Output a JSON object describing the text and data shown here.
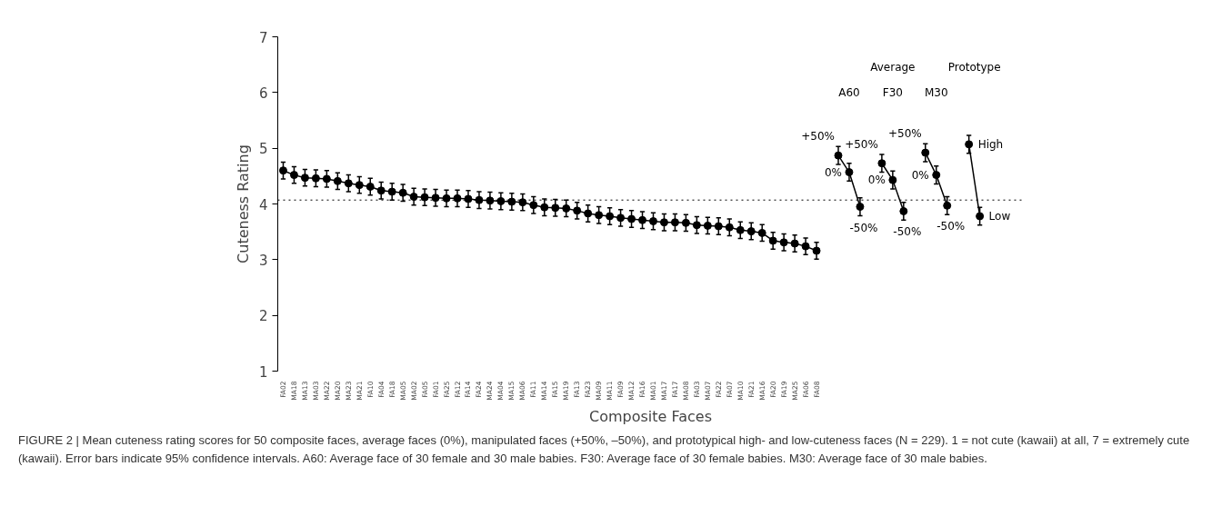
{
  "chart_data": {
    "type": "line",
    "xlabel": "Composite Faces",
    "ylabel": "Cuteness Rating",
    "categories": [
      "FA02",
      "MA18",
      "MA13",
      "MA03",
      "MA22",
      "MA20",
      "MA23",
      "MA21",
      "FA10",
      "FA04",
      "FA18",
      "MA05",
      "MA02",
      "FA05",
      "FA01",
      "FA25",
      "FA12",
      "FA14",
      "FA24",
      "MA24",
      "MA04",
      "MA15",
      "MA06",
      "FA11",
      "MA14",
      "FA15",
      "MA19",
      "FA13",
      "FA23",
      "MA09",
      "MA11",
      "FA09",
      "MA12",
      "FA16",
      "MA01",
      "MA17",
      "FA17",
      "MA08",
      "FA03",
      "MA07",
      "FA22",
      "FA07",
      "MA10",
      "FA21",
      "MA16",
      "FA20",
      "FA19",
      "MA25",
      "FA06",
      "FA08",
      null,
      null,
      null,
      null,
      null,
      null,
      null,
      null,
      null,
      null,
      null,
      null,
      null,
      null,
      null
    ],
    "series": [
      {
        "color": "#000000",
        "values": [
          4.6,
          4.52,
          4.47,
          4.46,
          4.45,
          4.41,
          4.37,
          4.34,
          4.31,
          4.24,
          4.22,
          4.2,
          4.13,
          4.12,
          4.11,
          4.1,
          4.1,
          4.09,
          4.07,
          4.06,
          4.05,
          4.04,
          4.03,
          3.98,
          3.94,
          3.93,
          3.92,
          3.88,
          3.83,
          3.8,
          3.78,
          3.75,
          3.73,
          3.71,
          3.69,
          3.67,
          3.67,
          3.66,
          3.62,
          3.61,
          3.6,
          3.58,
          3.53,
          3.51,
          3.48,
          3.34,
          3.31,
          3.29,
          3.24,
          3.16,
          null,
          null,
          null,
          null,
          null,
          null,
          null,
          null,
          null,
          null,
          null,
          null,
          null,
          null,
          null
        ],
        "errors": [
          0.15,
          0.15,
          0.15,
          0.15,
          0.15,
          0.15,
          0.15,
          0.15,
          0.15,
          0.15,
          0.15,
          0.15,
          0.15,
          0.15,
          0.15,
          0.15,
          0.15,
          0.15,
          0.15,
          0.15,
          0.15,
          0.15,
          0.15,
          0.15,
          0.15,
          0.15,
          0.15,
          0.15,
          0.15,
          0.15,
          0.15,
          0.15,
          0.15,
          0.15,
          0.15,
          0.15,
          0.15,
          0.15,
          0.15,
          0.15,
          0.15,
          0.15,
          0.15,
          0.15,
          0.15,
          0.15,
          0.15,
          0.15,
          0.15,
          0.15,
          null,
          null,
          null,
          null,
          null,
          null,
          null,
          null,
          null,
          null,
          null,
          null,
          null,
          null,
          null
        ]
      },
      {
        "color": "#000000",
        "values": [
          null,
          null,
          null,
          null,
          null,
          null,
          null,
          null,
          null,
          null,
          null,
          null,
          null,
          null,
          null,
          null,
          null,
          null,
          null,
          null,
          null,
          null,
          null,
          null,
          null,
          null,
          null,
          null,
          null,
          null,
          null,
          null,
          null,
          null,
          null,
          null,
          null,
          null,
          null,
          null,
          null,
          null,
          null,
          null,
          null,
          null,
          null,
          null,
          null,
          null,
          null,
          4.87,
          4.57,
          3.95,
          null,
          null,
          null,
          null,
          null,
          null,
          null,
          null,
          null,
          null,
          null
        ],
        "errors": [
          null,
          null,
          null,
          null,
          null,
          null,
          null,
          null,
          null,
          null,
          null,
          null,
          null,
          null,
          null,
          null,
          null,
          null,
          null,
          null,
          null,
          null,
          null,
          null,
          null,
          null,
          null,
          null,
          null,
          null,
          null,
          null,
          null,
          null,
          null,
          null,
          null,
          null,
          null,
          null,
          null,
          null,
          null,
          null,
          null,
          null,
          null,
          null,
          null,
          null,
          null,
          0.16,
          0.16,
          0.16,
          null,
          null,
          null,
          null,
          null,
          null,
          null,
          null,
          null,
          null,
          null
        ]
      },
      {
        "color": "#000000",
        "values": [
          null,
          null,
          null,
          null,
          null,
          null,
          null,
          null,
          null,
          null,
          null,
          null,
          null,
          null,
          null,
          null,
          null,
          null,
          null,
          null,
          null,
          null,
          null,
          null,
          null,
          null,
          null,
          null,
          null,
          null,
          null,
          null,
          null,
          null,
          null,
          null,
          null,
          null,
          null,
          null,
          null,
          null,
          null,
          null,
          null,
          null,
          null,
          null,
          null,
          null,
          null,
          null,
          null,
          null,
          null,
          4.73,
          4.43,
          3.87,
          null,
          null,
          null,
          null,
          null,
          null,
          null
        ],
        "errors": [
          null,
          null,
          null,
          null,
          null,
          null,
          null,
          null,
          null,
          null,
          null,
          null,
          null,
          null,
          null,
          null,
          null,
          null,
          null,
          null,
          null,
          null,
          null,
          null,
          null,
          null,
          null,
          null,
          null,
          null,
          null,
          null,
          null,
          null,
          null,
          null,
          null,
          null,
          null,
          null,
          null,
          null,
          null,
          null,
          null,
          null,
          null,
          null,
          null,
          null,
          null,
          null,
          null,
          null,
          null,
          0.16,
          0.16,
          0.16,
          null,
          null,
          null,
          null,
          null,
          null,
          null
        ]
      },
      {
        "color": "#000000",
        "values": [
          null,
          null,
          null,
          null,
          null,
          null,
          null,
          null,
          null,
          null,
          null,
          null,
          null,
          null,
          null,
          null,
          null,
          null,
          null,
          null,
          null,
          null,
          null,
          null,
          null,
          null,
          null,
          null,
          null,
          null,
          null,
          null,
          null,
          null,
          null,
          null,
          null,
          null,
          null,
          null,
          null,
          null,
          null,
          null,
          null,
          null,
          null,
          null,
          null,
          null,
          null,
          null,
          null,
          null,
          null,
          null,
          null,
          null,
          null,
          4.92,
          4.52,
          3.97,
          null,
          null,
          null
        ],
        "errors": [
          null,
          null,
          null,
          null,
          null,
          null,
          null,
          null,
          null,
          null,
          null,
          null,
          null,
          null,
          null,
          null,
          null,
          null,
          null,
          null,
          null,
          null,
          null,
          null,
          null,
          null,
          null,
          null,
          null,
          null,
          null,
          null,
          null,
          null,
          null,
          null,
          null,
          null,
          null,
          null,
          null,
          null,
          null,
          null,
          null,
          null,
          null,
          null,
          null,
          null,
          null,
          null,
          null,
          null,
          null,
          null,
          null,
          null,
          null,
          0.16,
          0.16,
          0.16,
          null,
          null,
          null
        ]
      },
      {
        "color": "#000000",
        "values": [
          null,
          null,
          null,
          null,
          null,
          null,
          null,
          null,
          null,
          null,
          null,
          null,
          null,
          null,
          null,
          null,
          null,
          null,
          null,
          null,
          null,
          null,
          null,
          null,
          null,
          null,
          null,
          null,
          null,
          null,
          null,
          null,
          null,
          null,
          null,
          null,
          null,
          null,
          null,
          null,
          null,
          null,
          null,
          null,
          null,
          null,
          null,
          null,
          null,
          null,
          null,
          null,
          null,
          null,
          null,
          null,
          null,
          null,
          null,
          null,
          null,
          null,
          null,
          5.07,
          3.78
        ],
        "errors": [
          null,
          null,
          null,
          null,
          null,
          null,
          null,
          null,
          null,
          null,
          null,
          null,
          null,
          null,
          null,
          null,
          null,
          null,
          null,
          null,
          null,
          null,
          null,
          null,
          null,
          null,
          null,
          null,
          null,
          null,
          null,
          null,
          null,
          null,
          null,
          null,
          null,
          null,
          null,
          null,
          null,
          null,
          null,
          null,
          null,
          null,
          null,
          null,
          null,
          null,
          null,
          null,
          null,
          null,
          null,
          null,
          null,
          null,
          null,
          null,
          null,
          null,
          null,
          0.16,
          0.16
        ]
      }
    ],
    "marker": "circle",
    "ylim": [
      1,
      7
    ],
    "yticks": [
      1,
      2,
      3,
      4,
      5,
      6,
      7
    ],
    "grid": false,
    "ref_lines": [
      {
        "axis": "y",
        "value": 4.07,
        "line_style": "dotted",
        "color": "#000000"
      }
    ],
    "annotations": [
      "Average",
      "Prototype",
      "A60",
      "F30",
      "M30",
      "+50%",
      "0%",
      "-50%",
      "+50%",
      "0%",
      "-50%",
      "+50%",
      "0%",
      "-50%",
      "High",
      "Low",
      "FIGURE 2 | Mean cuteness rating scores for 50 composite faces, average faces (0%), manipulated faces (+50%, –50%), and prototypical high- and low-cuteness faces (N = 229). 1 = not cute (kawaii) at all, 7 = extremely cute (kawaii). Error bars indicate 95% confidence intervals. A60: Average face of 30 female and 30 male babies. F30: Average face of 30 female babies. M30: Average face of 30 male babies."
    ]
  }
}
